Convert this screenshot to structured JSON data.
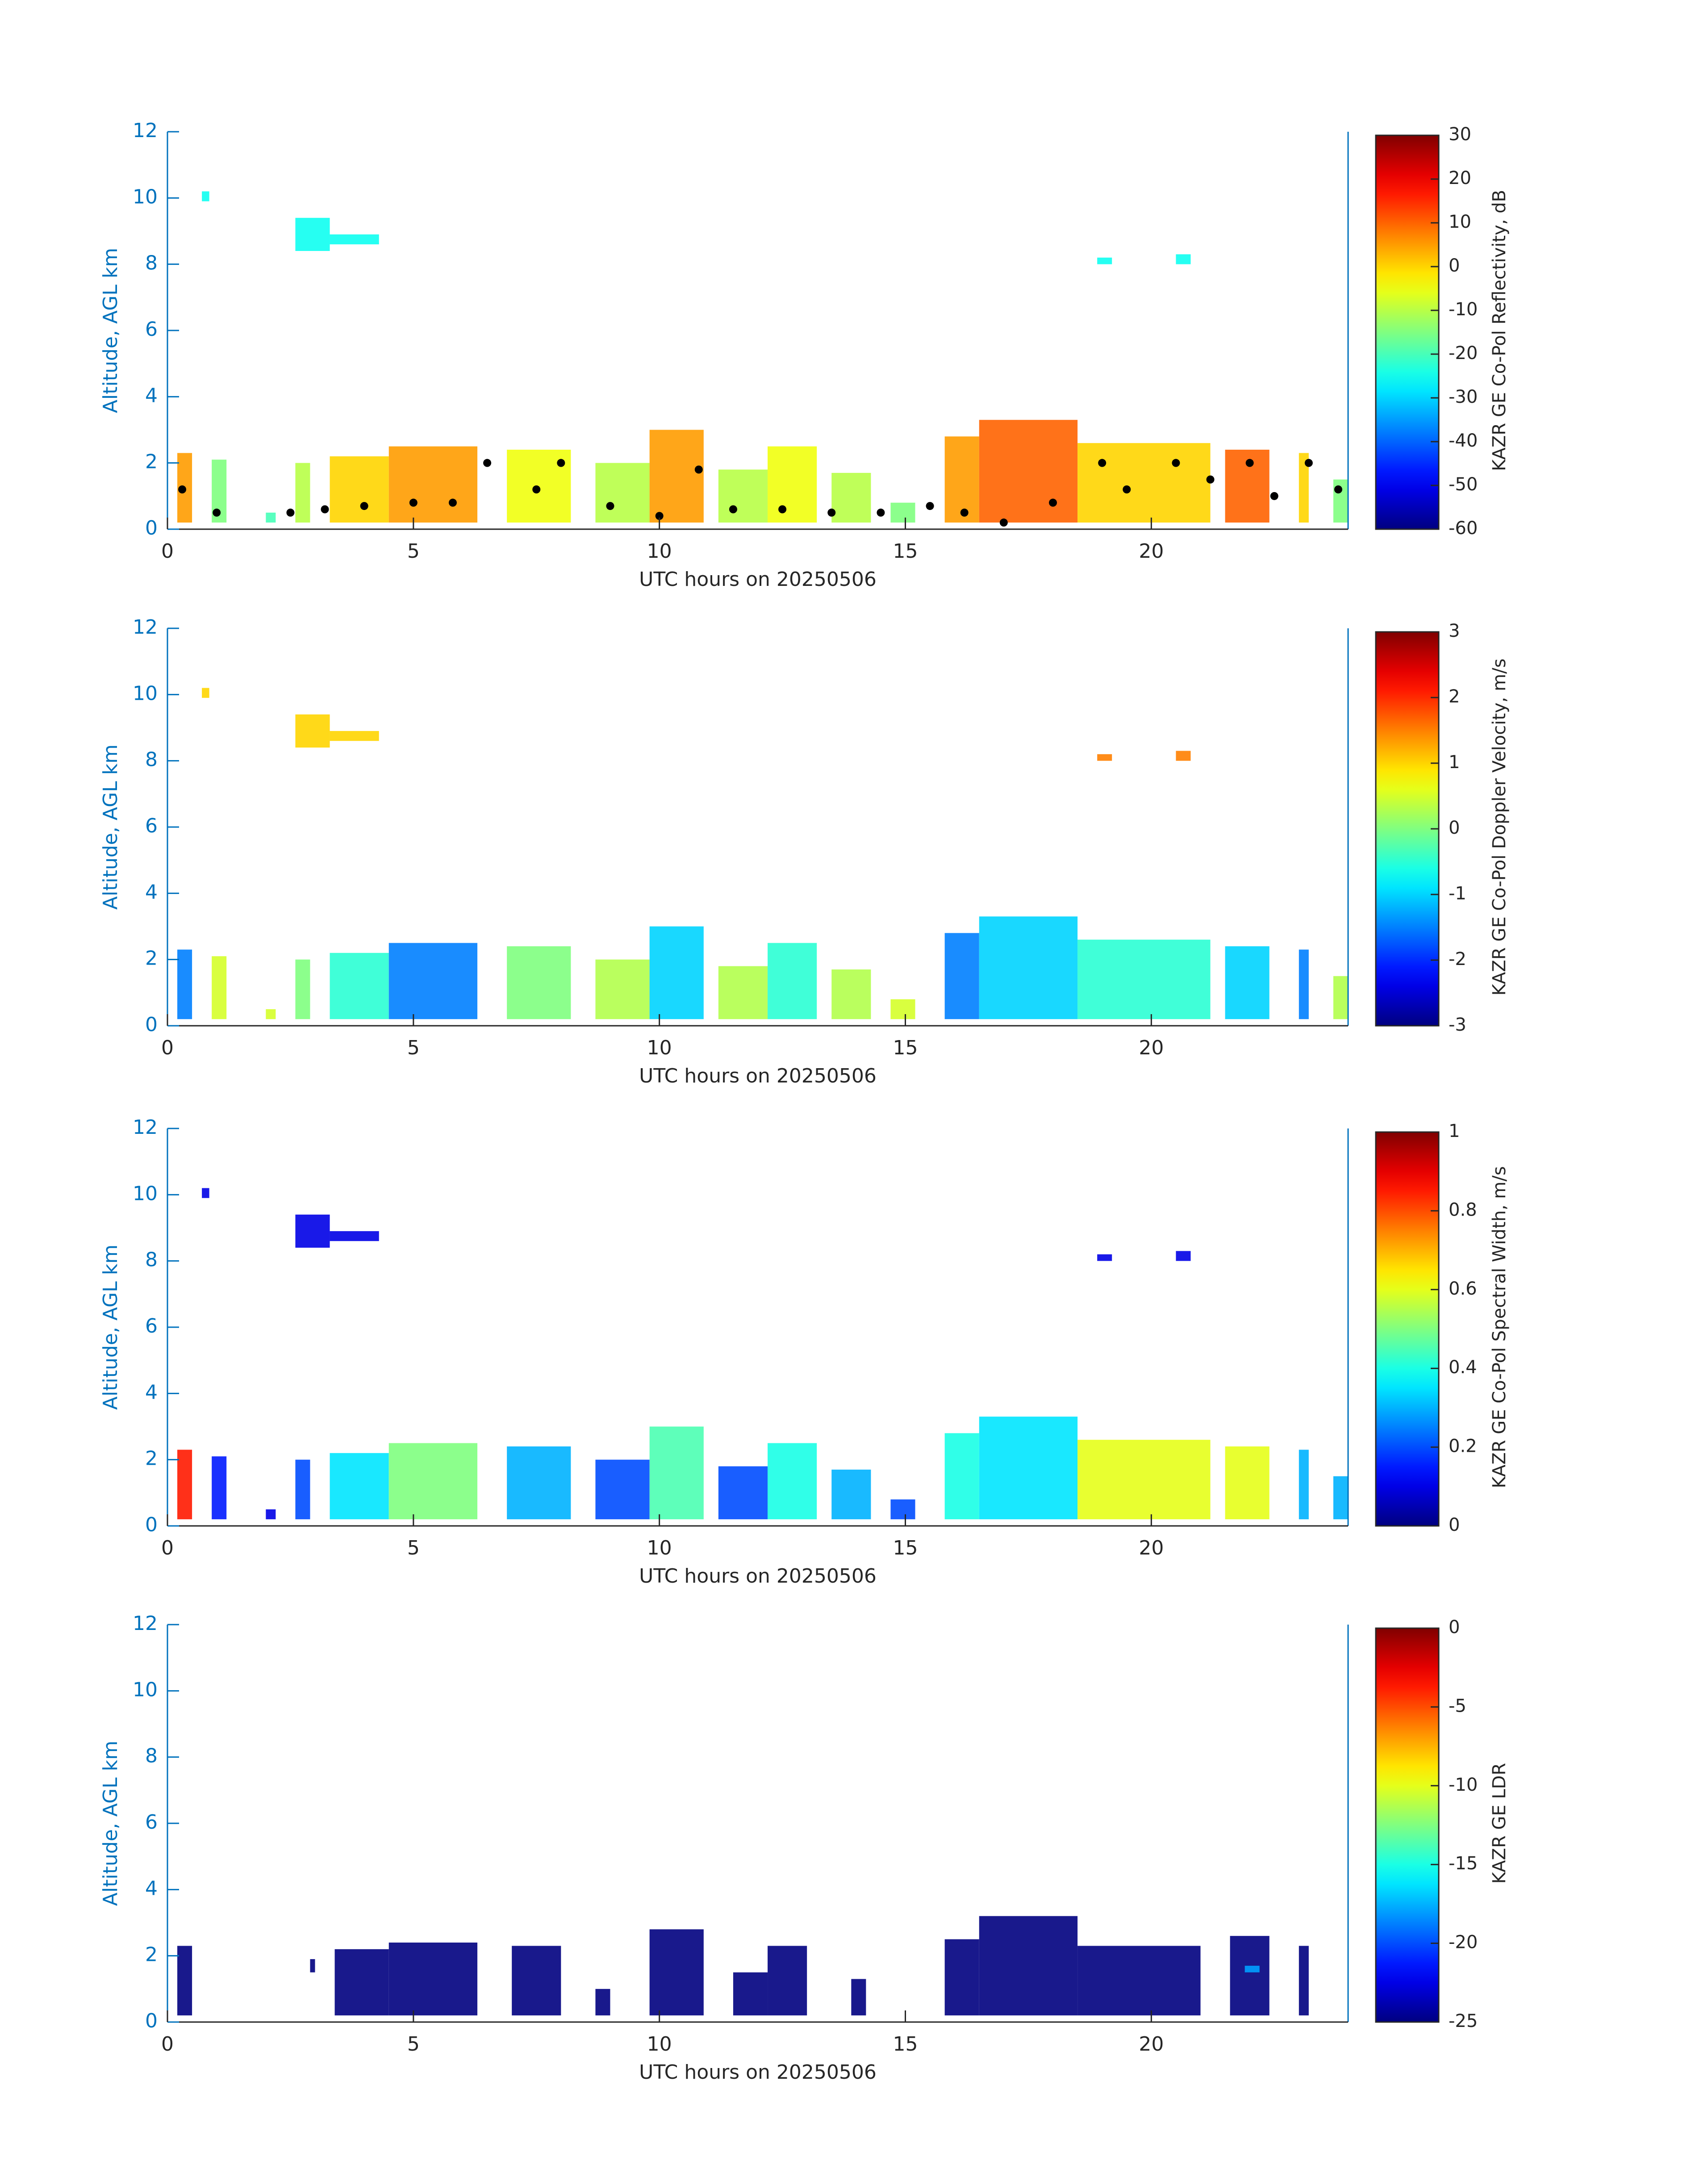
{
  "chart_data": [
    {
      "type": "heatmap",
      "xlabel": "UTC hours on 20250506",
      "ylabel": "Altitude, AGL km",
      "colormap": "jet",
      "xlim": [
        0,
        24
      ],
      "xticks": [
        0,
        5,
        10,
        15,
        20
      ],
      "ylim": [
        0,
        12
      ],
      "yticks": [
        0,
        2,
        4,
        6,
        8,
        10,
        12
      ],
      "colorbar": {
        "label": "KAZR GE Co-Pol Reflectivity, dB",
        "lim": [
          -60,
          30
        ],
        "ticks": [
          -60,
          -50,
          -40,
          -30,
          -20,
          -10,
          0,
          10,
          20,
          30
        ]
      },
      "cells": [
        {
          "x": [
            0.2,
            0.5
          ],
          "y": [
            0.2,
            2.3
          ],
          "value": 5
        },
        {
          "x": [
            0.9,
            1.2
          ],
          "y": [
            0.2,
            2.1
          ],
          "value": -15
        },
        {
          "x": [
            2.0,
            2.2
          ],
          "y": [
            0.2,
            0.5
          ],
          "value": -20
        },
        {
          "x": [
            2.6,
            2.9
          ],
          "y": [
            0.2,
            2.0
          ],
          "value": -10
        },
        {
          "x": [
            3.3,
            4.5
          ],
          "y": [
            0.2,
            2.2
          ],
          "value": 0
        },
        {
          "x": [
            4.5,
            6.3
          ],
          "y": [
            0.2,
            2.5
          ],
          "value": 5
        },
        {
          "x": [
            6.9,
            8.2
          ],
          "y": [
            0.2,
            2.4
          ],
          "value": -5
        },
        {
          "x": [
            8.7,
            9.8
          ],
          "y": [
            0.2,
            2.0
          ],
          "value": -10
        },
        {
          "x": [
            9.8,
            10.9
          ],
          "y": [
            0.2,
            3.0
          ],
          "value": 5
        },
        {
          "x": [
            11.2,
            12.2
          ],
          "y": [
            0.2,
            1.8
          ],
          "value": -10
        },
        {
          "x": [
            12.2,
            13.2
          ],
          "y": [
            0.2,
            2.5
          ],
          "value": -5
        },
        {
          "x": [
            13.5,
            14.3
          ],
          "y": [
            0.2,
            1.7
          ],
          "value": -10
        },
        {
          "x": [
            14.7,
            15.2
          ],
          "y": [
            0.2,
            0.8
          ],
          "value": -15
        },
        {
          "x": [
            15.8,
            16.5
          ],
          "y": [
            0.2,
            2.8
          ],
          "value": 5
        },
        {
          "x": [
            16.5,
            18.5
          ],
          "y": [
            0.2,
            3.3
          ],
          "value": 10
        },
        {
          "x": [
            18.5,
            21.2
          ],
          "y": [
            0.2,
            2.6
          ],
          "value": 0
        },
        {
          "x": [
            21.5,
            22.4
          ],
          "y": [
            0.2,
            2.4
          ],
          "value": 10
        },
        {
          "x": [
            23.0,
            23.2
          ],
          "y": [
            0.2,
            2.3
          ],
          "value": 0
        },
        {
          "x": [
            23.7,
            24.0
          ],
          "y": [
            0.2,
            1.5
          ],
          "value": -15
        },
        {
          "x": [
            0.7,
            0.85
          ],
          "y": [
            9.9,
            10.2
          ],
          "value": -25
        },
        {
          "x": [
            2.6,
            3.3
          ],
          "y": [
            8.4,
            9.4
          ],
          "value": -25
        },
        {
          "x": [
            3.3,
            4.3
          ],
          "y": [
            8.6,
            8.9
          ],
          "value": -25
        },
        {
          "x": [
            18.9,
            19.2
          ],
          "y": [
            8.0,
            8.2
          ],
          "value": -25
        },
        {
          "x": [
            20.5,
            20.8
          ],
          "y": [
            8.0,
            8.3
          ],
          "value": -25
        }
      ],
      "points": {
        "color": "#000000",
        "x": [
          0.3,
          1.0,
          2.5,
          3.2,
          4.0,
          5.0,
          5.8,
          6.5,
          7.5,
          8.0,
          9.0,
          10.0,
          10.8,
          11.5,
          12.5,
          13.5,
          14.5,
          15.5,
          16.2,
          17.0,
          18.0,
          19.0,
          19.5,
          20.5,
          21.2,
          22.0,
          22.5,
          23.2,
          23.8
        ],
        "y": [
          1.2,
          0.5,
          0.5,
          0.6,
          0.7,
          0.8,
          0.8,
          2.0,
          1.2,
          2.0,
          0.7,
          0.4,
          1.8,
          0.6,
          0.6,
          0.5,
          0.5,
          0.7,
          0.5,
          0.2,
          0.8,
          2.0,
          1.2,
          2.0,
          1.5,
          2.0,
          1.0,
          2.0,
          1.2
        ]
      }
    },
    {
      "type": "heatmap",
      "xlabel": "UTC hours on 20250506",
      "ylabel": "Altitude, AGL km",
      "colormap": "jet",
      "xlim": [
        0,
        24
      ],
      "xticks": [
        0,
        5,
        10,
        15,
        20
      ],
      "ylim": [
        0,
        12
      ],
      "yticks": [
        0,
        2,
        4,
        6,
        8,
        10,
        12
      ],
      "colorbar": {
        "label": "KAZR GE Co-Pol Doppler Velocity, m/s",
        "lim": [
          -3,
          3
        ],
        "ticks": [
          -3,
          -2,
          -1,
          0,
          1,
          2,
          3
        ]
      },
      "cells": [
        {
          "x": [
            0.2,
            0.5
          ],
          "y": [
            0.2,
            2.3
          ],
          "value": -1.5
        },
        {
          "x": [
            0.9,
            1.2
          ],
          "y": [
            0.2,
            2.1
          ],
          "value": 0.5
        },
        {
          "x": [
            2.0,
            2.2
          ],
          "y": [
            0.2,
            0.5
          ],
          "value": 0.5
        },
        {
          "x": [
            2.6,
            2.9
          ],
          "y": [
            0.2,
            2.0
          ],
          "value": 0
        },
        {
          "x": [
            3.3,
            4.5
          ],
          "y": [
            0.2,
            2.2
          ],
          "value": -0.5
        },
        {
          "x": [
            4.5,
            6.3
          ],
          "y": [
            0.2,
            2.5
          ],
          "value": -1.5
        },
        {
          "x": [
            6.9,
            8.2
          ],
          "y": [
            0.2,
            2.4
          ],
          "value": 0
        },
        {
          "x": [
            8.7,
            9.8
          ],
          "y": [
            0.2,
            2.0
          ],
          "value": 0.3
        },
        {
          "x": [
            9.8,
            10.9
          ],
          "y": [
            0.2,
            3.0
          ],
          "value": -1
        },
        {
          "x": [
            11.2,
            12.2
          ],
          "y": [
            0.2,
            1.8
          ],
          "value": 0.3
        },
        {
          "x": [
            12.2,
            13.2
          ],
          "y": [
            0.2,
            2.5
          ],
          "value": -0.5
        },
        {
          "x": [
            13.5,
            14.3
          ],
          "y": [
            0.2,
            1.7
          ],
          "value": 0.3
        },
        {
          "x": [
            14.7,
            15.2
          ],
          "y": [
            0.2,
            0.8
          ],
          "value": 0.5
        },
        {
          "x": [
            15.8,
            16.5
          ],
          "y": [
            0.2,
            2.8
          ],
          "value": -1.5
        },
        {
          "x": [
            16.5,
            18.5
          ],
          "y": [
            0.2,
            3.3
          ],
          "value": -1
        },
        {
          "x": [
            18.5,
            21.2
          ],
          "y": [
            0.2,
            2.6
          ],
          "value": -0.5
        },
        {
          "x": [
            21.5,
            22.4
          ],
          "y": [
            0.2,
            2.4
          ],
          "value": -1
        },
        {
          "x": [
            23.0,
            23.2
          ],
          "y": [
            0.2,
            2.3
          ],
          "value": -1.5
        },
        {
          "x": [
            23.7,
            24.0
          ],
          "y": [
            0.2,
            1.5
          ],
          "value": 0.3
        },
        {
          "x": [
            0.7,
            0.85
          ],
          "y": [
            9.9,
            10.2
          ],
          "value": 1
        },
        {
          "x": [
            2.6,
            3.3
          ],
          "y": [
            8.4,
            9.4
          ],
          "value": 1
        },
        {
          "x": [
            3.3,
            4.3
          ],
          "y": [
            8.6,
            8.9
          ],
          "value": 1
        },
        {
          "x": [
            18.9,
            19.2
          ],
          "y": [
            8.0,
            8.2
          ],
          "value": 1.5
        },
        {
          "x": [
            20.5,
            20.8
          ],
          "y": [
            8.0,
            8.3
          ],
          "value": 1.5
        }
      ]
    },
    {
      "type": "heatmap",
      "xlabel": "UTC hours on 20250506",
      "ylabel": "Altitude, AGL km",
      "colormap": "jet",
      "xlim": [
        0,
        24
      ],
      "xticks": [
        0,
        5,
        10,
        15,
        20
      ],
      "ylim": [
        0,
        12
      ],
      "yticks": [
        0,
        2,
        4,
        6,
        8,
        10,
        12
      ],
      "colorbar": {
        "label": "KAZR GE Co-Pol Spectral Width, m/s",
        "lim": [
          0,
          1
        ],
        "ticks": [
          0,
          0.2,
          0.4,
          0.6,
          0.8,
          1
        ]
      },
      "cells": [
        {
          "x": [
            0.2,
            0.5
          ],
          "y": [
            0.2,
            2.3
          ],
          "value": 0.85
        },
        {
          "x": [
            0.9,
            1.2
          ],
          "y": [
            0.2,
            2.1
          ],
          "value": 0.15
        },
        {
          "x": [
            2.0,
            2.2
          ],
          "y": [
            0.2,
            0.5
          ],
          "value": 0.1
        },
        {
          "x": [
            2.6,
            2.9
          ],
          "y": [
            0.2,
            2.0
          ],
          "value": 0.2
        },
        {
          "x": [
            3.3,
            4.5
          ],
          "y": [
            0.2,
            2.2
          ],
          "value": 0.35
        },
        {
          "x": [
            4.5,
            6.3
          ],
          "y": [
            0.2,
            2.5
          ],
          "value": 0.5
        },
        {
          "x": [
            6.9,
            8.2
          ],
          "y": [
            0.2,
            2.4
          ],
          "value": 0.3
        },
        {
          "x": [
            8.7,
            9.8
          ],
          "y": [
            0.2,
            2.0
          ],
          "value": 0.2
        },
        {
          "x": [
            9.8,
            10.9
          ],
          "y": [
            0.2,
            3.0
          ],
          "value": 0.45
        },
        {
          "x": [
            11.2,
            12.2
          ],
          "y": [
            0.2,
            1.8
          ],
          "value": 0.2
        },
        {
          "x": [
            12.2,
            13.2
          ],
          "y": [
            0.2,
            2.5
          ],
          "value": 0.4
        },
        {
          "x": [
            13.5,
            14.3
          ],
          "y": [
            0.2,
            1.7
          ],
          "value": 0.3
        },
        {
          "x": [
            14.7,
            15.2
          ],
          "y": [
            0.2,
            0.8
          ],
          "value": 0.2
        },
        {
          "x": [
            15.8,
            16.5
          ],
          "y": [
            0.2,
            2.8
          ],
          "value": 0.4
        },
        {
          "x": [
            16.5,
            18.5
          ],
          "y": [
            0.2,
            3.3
          ],
          "value": 0.35
        },
        {
          "x": [
            18.5,
            21.2
          ],
          "y": [
            0.2,
            2.6
          ],
          "value": 0.6
        },
        {
          "x": [
            21.5,
            22.4
          ],
          "y": [
            0.2,
            2.4
          ],
          "value": 0.6
        },
        {
          "x": [
            23.0,
            23.2
          ],
          "y": [
            0.2,
            2.3
          ],
          "value": 0.3
        },
        {
          "x": [
            23.7,
            24.0
          ],
          "y": [
            0.2,
            1.5
          ],
          "value": 0.3
        },
        {
          "x": [
            0.7,
            0.85
          ],
          "y": [
            9.9,
            10.2
          ],
          "value": 0.1
        },
        {
          "x": [
            2.6,
            3.3
          ],
          "y": [
            8.4,
            9.4
          ],
          "value": 0.1
        },
        {
          "x": [
            3.3,
            4.3
          ],
          "y": [
            8.6,
            8.9
          ],
          "value": 0.1
        },
        {
          "x": [
            18.9,
            19.2
          ],
          "y": [
            8.0,
            8.2
          ],
          "value": 0.1
        },
        {
          "x": [
            20.5,
            20.8
          ],
          "y": [
            8.0,
            8.3
          ],
          "value": 0.1
        }
      ]
    },
    {
      "type": "heatmap",
      "xlabel": "UTC hours on 20250506",
      "ylabel": "Altitude, AGL km",
      "colormap": "jet",
      "xlim": [
        0,
        24
      ],
      "xticks": [
        0,
        5,
        10,
        15,
        20
      ],
      "ylim": [
        0,
        12
      ],
      "yticks": [
        0,
        2,
        4,
        6,
        8,
        10,
        12
      ],
      "colorbar": {
        "label": "KAZR GE LDR",
        "lim": [
          -25,
          0
        ],
        "ticks": [
          -25,
          -20,
          -15,
          -10,
          -5,
          0
        ]
      },
      "cells": [
        {
          "x": [
            0.2,
            0.5
          ],
          "y": [
            0.2,
            2.3
          ],
          "value": -25
        },
        {
          "x": [
            2.9,
            3.0
          ],
          "y": [
            1.5,
            1.9
          ],
          "value": -25
        },
        {
          "x": [
            3.4,
            4.5
          ],
          "y": [
            0.2,
            2.2
          ],
          "value": -25
        },
        {
          "x": [
            4.5,
            6.3
          ],
          "y": [
            0.2,
            2.4
          ],
          "value": -25
        },
        {
          "x": [
            7.0,
            8.0
          ],
          "y": [
            0.2,
            2.3
          ],
          "value": -25
        },
        {
          "x": [
            8.7,
            9.0
          ],
          "y": [
            0.2,
            1.0
          ],
          "value": -25
        },
        {
          "x": [
            9.8,
            10.9
          ],
          "y": [
            0.2,
            2.8
          ],
          "value": -25
        },
        {
          "x": [
            11.5,
            12.2
          ],
          "y": [
            0.2,
            1.5
          ],
          "value": -25
        },
        {
          "x": [
            12.2,
            13.0
          ],
          "y": [
            0.2,
            2.3
          ],
          "value": -25
        },
        {
          "x": [
            13.9,
            14.2
          ],
          "y": [
            0.2,
            1.3
          ],
          "value": -25
        },
        {
          "x": [
            15.8,
            16.5
          ],
          "y": [
            0.2,
            2.5
          ],
          "value": -25
        },
        {
          "x": [
            16.5,
            18.5
          ],
          "y": [
            0.2,
            3.2
          ],
          "value": -25
        },
        {
          "x": [
            18.5,
            21.0
          ],
          "y": [
            0.2,
            2.3
          ],
          "value": -25
        },
        {
          "x": [
            21.6,
            22.4
          ],
          "y": [
            0.2,
            2.6
          ],
          "value": -25
        },
        {
          "x": [
            21.9,
            22.2
          ],
          "y": [
            1.5,
            1.7
          ],
          "value": -18
        },
        {
          "x": [
            23.0,
            23.2
          ],
          "y": [
            0.2,
            2.3
          ],
          "value": -25
        }
      ]
    }
  ]
}
